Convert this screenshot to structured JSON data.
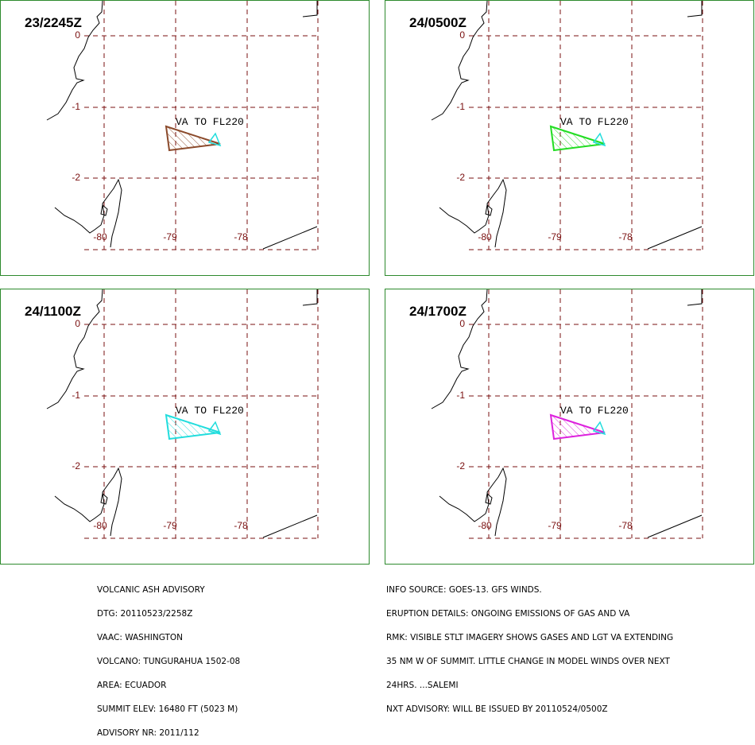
{
  "panels": [
    {
      "time": "23/2245Z",
      "cloud_color": "#8b4a2b"
    },
    {
      "time": "24/0500Z",
      "cloud_color": "#22dd22"
    },
    {
      "time": "24/1100Z",
      "cloud_color": "#22dddd"
    },
    {
      "time": "24/1700Z",
      "cloud_color": "#dd22dd"
    }
  ],
  "cloud_label": "VA TO FL220",
  "lat_labels": [
    "0",
    "-1",
    "-2"
  ],
  "lon_labels": [
    "-80",
    "-79",
    "-78"
  ],
  "advisory_left": [
    "VOLCANIC ASH ADVISORY",
    "DTG: 20110523/2258Z",
    "VAAC: WASHINGTON",
    "VOLCANO: TUNGURAHUA 1502-08",
    "AREA: ECUADOR",
    "SUMMIT ELEV: 16480 FT (5023 M)",
    "ADVISORY NR: 2011/112"
  ],
  "advisory_right": [
    "INFO SOURCE: GOES-13. GFS WINDS.",
    "ERUPTION DETAILS: ONGOING EMISSIONS OF GAS AND VA",
    "RMK: VISIBLE STLT IMAGERY SHOWS GASES AND LGT VA EXTENDING",
    "35 NM W OF SUMMIT. LITTLE CHANGE IN MODEL WINDS OVER NEXT",
    "24HRS. ...SALEMI",
    "NXT ADVISORY: WILL BE ISSUED BY 20110524/0500Z"
  ],
  "colors": {
    "grid": "#7a1010",
    "frame": "#2d8a2d",
    "volcano": "#22dddd"
  }
}
